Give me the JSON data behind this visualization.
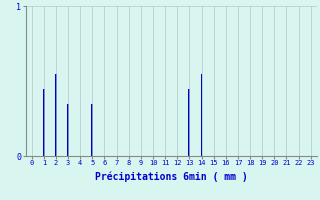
{
  "hours": [
    0,
    1,
    2,
    3,
    4,
    5,
    6,
    7,
    8,
    9,
    10,
    11,
    12,
    13,
    14,
    15,
    16,
    17,
    18,
    19,
    20,
    21,
    22,
    23
  ],
  "values": [
    0,
    0.45,
    0.55,
    0.35,
    0,
    0.35,
    0,
    0,
    0,
    0,
    0,
    0,
    0,
    0.45,
    0.55,
    0,
    0,
    0,
    0,
    0,
    0,
    0,
    0,
    0
  ],
  "bar_color": "#0000cc",
  "bg_color": "#d8f5f0",
  "grid_color": "#b0c8c8",
  "axis_color": "#888888",
  "xlabel": "Précipitations 6min ( mm )",
  "xlabel_color": "#0000cc",
  "ylim": [
    0,
    1
  ],
  "yticks": [
    0,
    1
  ],
  "bar_width": 0.15,
  "tick_color": "#0000cc",
  "tick_fontsize": 5,
  "xlabel_fontsize": 7
}
